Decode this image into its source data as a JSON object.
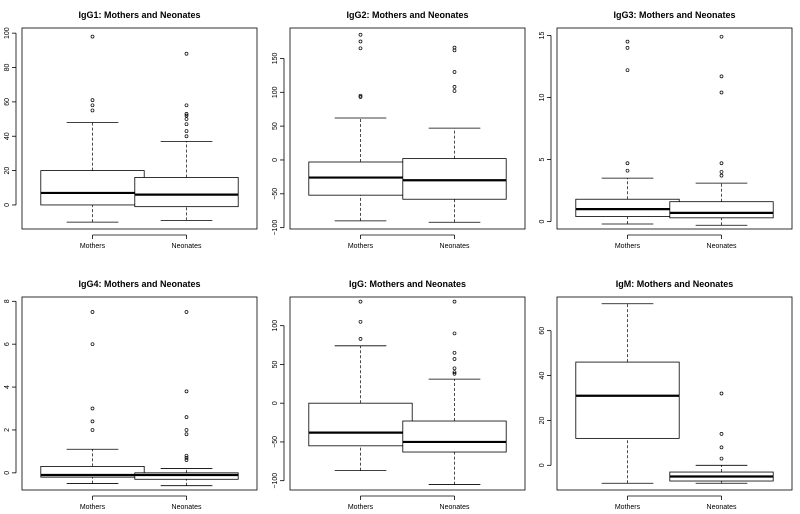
{
  "chart_data": [
    {
      "type": "boxplot",
      "title": "IgG1: Mothers and Neonates",
      "ylim": [
        -14,
        103
      ],
      "yticks": [
        0,
        20,
        40,
        60,
        80,
        100
      ],
      "categories": [
        "Mothers",
        "Neonates"
      ],
      "boxes": [
        {
          "min": -10,
          "q1": 0,
          "median": 7,
          "q3": 20,
          "max": 48,
          "outliers": [
            55,
            58,
            61,
            98
          ]
        },
        {
          "min": -9,
          "q1": -1,
          "median": 6,
          "q3": 16,
          "max": 37,
          "outliers": [
            40,
            43,
            47,
            50,
            52,
            53,
            58,
            88
          ]
        }
      ]
    },
    {
      "type": "boxplot",
      "title": "IgG2: Mothers and Neonates",
      "ylim": [
        -102,
        195
      ],
      "yticks": [
        -100,
        -50,
        0,
        50,
        100,
        150
      ],
      "categories": [
        "Mothers",
        "Neonates"
      ],
      "boxes": [
        {
          "min": -90,
          "q1": -52,
          "median": -26,
          "q3": -3,
          "max": 62,
          "outliers": [
            93,
            95,
            165,
            175,
            185
          ]
        },
        {
          "min": -92,
          "q1": -58,
          "median": -30,
          "q3": 2,
          "max": 47,
          "outliers": [
            102,
            108,
            130,
            162,
            166
          ]
        }
      ]
    },
    {
      "type": "boxplot",
      "title": "IgG3: Mothers and Neonates",
      "ylim": [
        -0.6,
        15.6
      ],
      "yticks": [
        0,
        5,
        10,
        15
      ],
      "categories": [
        "Mothers",
        "Neonates"
      ],
      "boxes": [
        {
          "min": -0.2,
          "q1": 0.4,
          "median": 1,
          "q3": 1.8,
          "max": 3.5,
          "outliers": [
            4.1,
            4.7,
            12.2,
            14,
            14.5
          ]
        },
        {
          "min": -0.3,
          "q1": 0.3,
          "median": 0.7,
          "q3": 1.6,
          "max": 3.1,
          "outliers": [
            3.7,
            4,
            4.7,
            10.4,
            11.7,
            14.9
          ]
        }
      ]
    },
    {
      "type": "boxplot",
      "title": "IgG4: Mothers and Neonates",
      "ylim": [
        -0.8,
        8.2
      ],
      "yticks": [
        0,
        2,
        4,
        6,
        8
      ],
      "categories": [
        "Mothers",
        "Neonates"
      ],
      "boxes": [
        {
          "min": -0.5,
          "q1": -0.2,
          "median": -0.1,
          "q3": 0.3,
          "max": 1.1,
          "outliers": [
            2,
            2.4,
            3,
            6,
            7.5
          ]
        },
        {
          "min": -0.6,
          "q1": -0.3,
          "median": -0.1,
          "q3": 0,
          "max": 0.2,
          "outliers": [
            0.6,
            0.7,
            0.8,
            1.8,
            2,
            2.6,
            3.8,
            7.5
          ]
        }
      ]
    },
    {
      "type": "boxplot",
      "title": "IgG: Mothers and Neonates",
      "ylim": [
        -112,
        137
      ],
      "yticks": [
        -100,
        -50,
        0,
        50,
        100
      ],
      "categories": [
        "Mothers",
        "Neonates"
      ],
      "boxes": [
        {
          "min": -87,
          "q1": -55,
          "median": -38,
          "q3": 0,
          "max": 74,
          "outliers": [
            83,
            105,
            131
          ]
        },
        {
          "min": -105,
          "q1": -63,
          "median": -50,
          "q3": -23,
          "max": 31,
          "outliers": [
            38,
            40,
            45,
            57,
            65,
            90,
            131
          ]
        }
      ]
    },
    {
      "type": "boxplot",
      "title": "IgM: Mothers and Neonates",
      "ylim": [
        -11,
        75
      ],
      "yticks": [
        0,
        20,
        40,
        60
      ],
      "categories": [
        "Mothers",
        "Neonates"
      ],
      "boxes": [
        {
          "min": -8,
          "q1": 12,
          "median": 31,
          "q3": 46,
          "max": 72,
          "outliers": []
        },
        {
          "min": -8,
          "q1": -7,
          "median": -5,
          "q3": -3,
          "max": 0,
          "outliers": [
            3,
            8,
            14,
            32
          ]
        }
      ]
    }
  ]
}
